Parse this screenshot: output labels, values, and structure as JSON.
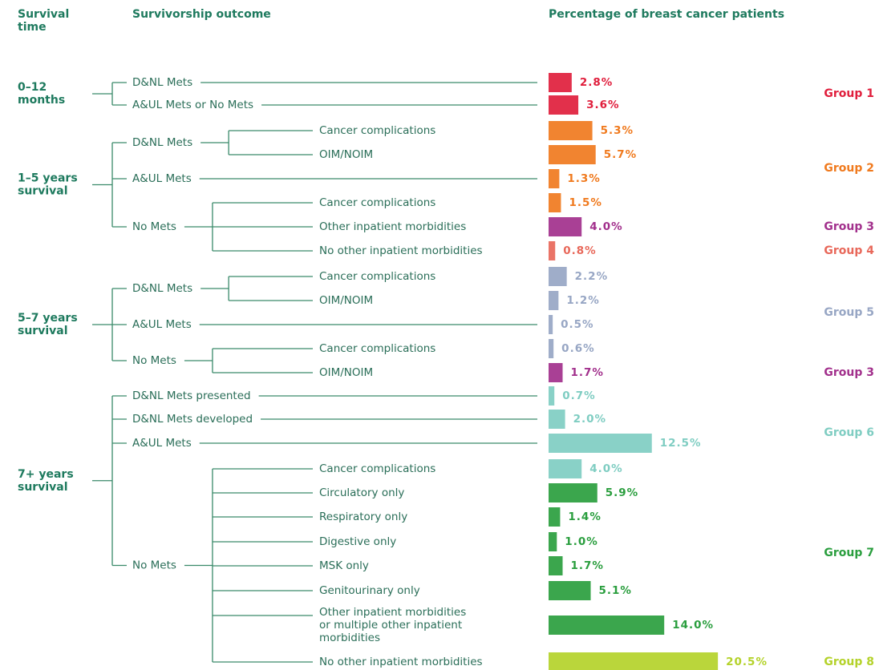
{
  "headers": {
    "survival_time": "Survival\ntime",
    "outcome": "Survivorship outcome",
    "percentage": "Percentage of breast cancer patients"
  },
  "survival_groups": [
    {
      "label": "0–12\nmonths",
      "outcomes": [
        {
          "label": "D&NL Mets",
          "value": 2.8,
          "value_label": "2.8%",
          "color": "#e01e3c"
        },
        {
          "label": "A&UL Mets or No Mets",
          "value": 3.6,
          "value_label": "3.6%",
          "color": "#e01e3c"
        }
      ]
    },
    {
      "label": "1–5 years\nsurvival",
      "outcomes": [
        {
          "label": "D&NL Mets",
          "leaves": [
            {
              "label": "Cancer complications",
              "value": 5.3,
              "value_label": "5.3%",
              "color": "#f07a1e"
            },
            {
              "label": "OIM/NOIM",
              "value": 5.7,
              "value_label": "5.7%",
              "color": "#f07a1e"
            }
          ]
        },
        {
          "label": "A&UL Mets",
          "value": 1.3,
          "value_label": "1.3%",
          "color": "#f07a1e"
        },
        {
          "label": "No Mets",
          "leaves": [
            {
              "label": "Cancer complications",
              "value": 1.5,
              "value_label": "1.5%",
              "color": "#f07a1e"
            },
            {
              "label": "Other inpatient morbidities",
              "value": 4.0,
              "value_label": "4.0%",
              "color": "#a2308c"
            },
            {
              "label": "No other inpatient morbidities",
              "value": 0.8,
              "value_label": "0.8%",
              "color": "#e8685a"
            }
          ]
        }
      ]
    },
    {
      "label": "5–7 years\nsurvival",
      "outcomes": [
        {
          "label": "D&NL Mets",
          "leaves": [
            {
              "label": "Cancer complications",
              "value": 2.2,
              "value_label": "2.2%",
              "color": "#97a6c4"
            },
            {
              "label": "OIM/NOIM",
              "value": 1.2,
              "value_label": "1.2%",
              "color": "#97a6c4"
            }
          ]
        },
        {
          "label": "A&UL Mets",
          "value": 0.5,
          "value_label": "0.5%",
          "color": "#97a6c4"
        },
        {
          "label": "No Mets",
          "leaves": [
            {
              "label": "Cancer complications",
              "value": 0.6,
              "value_label": "0.6%",
              "color": "#97a6c4"
            },
            {
              "label": "OIM/NOIM",
              "value": 1.7,
              "value_label": "1.7%",
              "color": "#a2308c"
            }
          ]
        }
      ]
    },
    {
      "label": "7+ years\nsurvival",
      "outcomes": [
        {
          "label": "D&NL Mets presented",
          "value": 0.7,
          "value_label": "0.7%",
          "color": "#7fcdc2"
        },
        {
          "label": "D&NL Mets developed",
          "value": 2.0,
          "value_label": "2.0%",
          "color": "#7fcdc2"
        },
        {
          "label": "A&UL Mets",
          "value": 12.5,
          "value_label": "12.5%",
          "color": "#7fcdc2"
        },
        {
          "label": "No Mets",
          "leaves": [
            {
              "label": "Cancer complications",
              "value": 4.0,
              "value_label": "4.0%",
              "color": "#7fcdc2"
            },
            {
              "label": "Circulatory only",
              "value": 5.9,
              "value_label": "5.9%",
              "color": "#2a9e3e"
            },
            {
              "label": "Respiratory only",
              "value": 1.4,
              "value_label": "1.4%",
              "color": "#2a9e3e"
            },
            {
              "label": "Digestive only",
              "value": 1.0,
              "value_label": "1.0%",
              "color": "#2a9e3e"
            },
            {
              "label": "MSK only",
              "value": 1.7,
              "value_label": "1.7%",
              "color": "#2a9e3e"
            },
            {
              "label": "Genitourinary only",
              "value": 5.1,
              "value_label": "5.1%",
              "color": "#2a9e3e"
            },
            {
              "label": "Other inpatient morbidities\nor multiple other inpatient\nmorbidities",
              "value": 14.0,
              "value_label": "14.0%",
              "color": "#2a9e3e"
            },
            {
              "label": "No other inpatient morbidities",
              "value": 20.5,
              "value_label": "20.5%",
              "color": "#b4d22a"
            }
          ]
        }
      ]
    }
  ],
  "groups": [
    {
      "label": "Group 1",
      "color": "#e01e3c"
    },
    {
      "label": "Group 2",
      "color": "#f07a1e"
    },
    {
      "label": "Group 3",
      "color": "#a2308c"
    },
    {
      "label": "Group 4",
      "color": "#e8685a"
    },
    {
      "label": "Group 5",
      "color": "#97a6c4"
    },
    {
      "label": "Group 3",
      "color": "#a2308c"
    },
    {
      "label": "Group 6",
      "color": "#7fcdc2"
    },
    {
      "label": "Group 7",
      "color": "#2a9e3e"
    },
    {
      "label": "Group 8",
      "color": "#b4d22a"
    }
  ]
}
